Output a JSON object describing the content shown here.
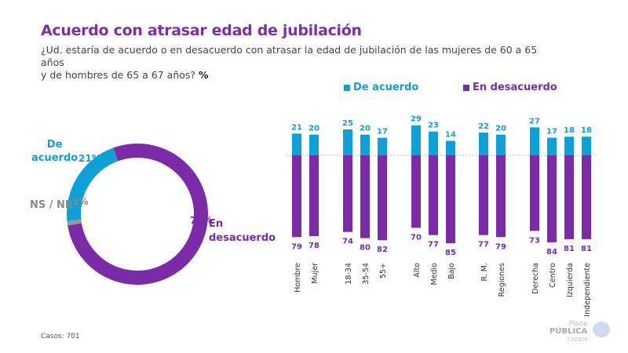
{
  "title": "Acuerdo con atrasar edad de jubilación",
  "subtitle_line1": "¿Ud. estaría de acuerdo o en desacuerdo con atrasar la edad de jubilación de las mujeres de 60 a 65 años",
  "subtitle_line2": "y de hombres de 65 a 67 años?",
  "subtitle_unit": "%",
  "footer": "Casos: 701",
  "logo": {
    "line1": "Plaza",
    "line2": "PÚBLICA",
    "line3": "CADEM"
  },
  "colors": {
    "acuerdo": "#0ea0d8",
    "desacuerdo": "#7b2aa8",
    "nsnr": "#999999"
  },
  "chart_data": [
    {
      "type": "pie",
      "donut": true,
      "slices": [
        {
          "name": "En desacuerdo",
          "label_lines": [
            "En",
            "desacuerdo"
          ],
          "value": 78,
          "value_label": "78%"
        },
        {
          "name": "NS / NR",
          "value": 1,
          "value_label": "1%"
        },
        {
          "name": "De acuerdo",
          "label_lines": [
            "De",
            "acuerdo"
          ],
          "value": 21,
          "value_label": "21%"
        }
      ]
    },
    {
      "type": "bar",
      "diverging": true,
      "legend": [
        "De acuerdo",
        "En desacuerdo"
      ],
      "legend_position": "top",
      "categories": [
        "Hombre",
        "Mujer",
        "18-34",
        "35-54",
        "55+",
        "Alto",
        "Medio",
        "Bajo",
        "R. M.",
        "Regiones",
        "Derecha",
        "Centro",
        "Izquierda",
        "Independiente"
      ],
      "groups": [
        [
          0,
          1
        ],
        [
          2,
          3,
          4
        ],
        [
          5,
          6,
          7
        ],
        [
          8,
          9
        ],
        [
          10,
          11,
          12,
          13
        ]
      ],
      "series": [
        {
          "name": "De acuerdo",
          "values": [
            21,
            20,
            25,
            20,
            17,
            29,
            23,
            14,
            22,
            20,
            27,
            17,
            18,
            18
          ]
        },
        {
          "name": "En desacuerdo",
          "values": [
            79,
            78,
            74,
            80,
            82,
            70,
            77,
            85,
            77,
            79,
            73,
            84,
            81,
            81
          ]
        }
      ]
    }
  ]
}
